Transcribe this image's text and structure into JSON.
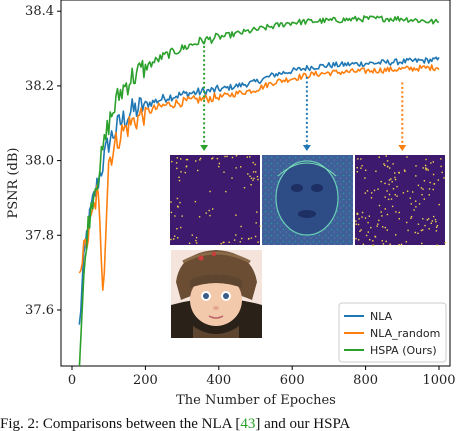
{
  "chart_data": {
    "type": "line",
    "title": "",
    "xlabel": "The Number of Epoches",
    "ylabel": "PSNR (dB)",
    "xlim": [
      -30,
      1030
    ],
    "ylim": [
      37.45,
      38.43
    ],
    "xticks": [
      0,
      200,
      400,
      600,
      800,
      1000
    ],
    "yticks": [
      37.6,
      37.8,
      38.0,
      38.2,
      38.4
    ],
    "ytick_labels": [
      "37.6",
      "37.8",
      "38.0",
      "38.2",
      "38.4"
    ],
    "grid": false,
    "legend_position": "lower-right",
    "series": [
      {
        "name": "NLA",
        "color": "#1f77b4",
        "anchors": [
          [
            20,
            37.55
          ],
          [
            30,
            37.7
          ],
          [
            40,
            37.8
          ],
          [
            55,
            37.88
          ],
          [
            75,
            37.96
          ],
          [
            100,
            38.05
          ],
          [
            130,
            38.1
          ],
          [
            160,
            38.13
          ],
          [
            200,
            38.15
          ],
          [
            260,
            38.17
          ],
          [
            320,
            38.18
          ],
          [
            400,
            38.19
          ],
          [
            450,
            38.2
          ],
          [
            500,
            38.21
          ],
          [
            550,
            38.23
          ],
          [
            600,
            38.24
          ],
          [
            650,
            38.25
          ],
          [
            700,
            38.255
          ],
          [
            800,
            38.26
          ],
          [
            900,
            38.265
          ],
          [
            1000,
            38.27
          ]
        ]
      },
      {
        "name": "NLA_random",
        "color": "#ff7f0e",
        "anchors": [
          [
            20,
            37.72
          ],
          [
            40,
            37.78
          ],
          [
            55,
            37.85
          ],
          [
            70,
            37.92
          ],
          [
            85,
            37.66
          ],
          [
            100,
            38.0
          ],
          [
            130,
            38.07
          ],
          [
            160,
            38.1
          ],
          [
            200,
            38.13
          ],
          [
            260,
            38.15
          ],
          [
            320,
            38.16
          ],
          [
            400,
            38.17
          ],
          [
            450,
            38.18
          ],
          [
            500,
            38.19
          ],
          [
            550,
            38.21
          ],
          [
            600,
            38.22
          ],
          [
            650,
            38.23
          ],
          [
            700,
            38.235
          ],
          [
            800,
            38.24
          ],
          [
            900,
            38.245
          ],
          [
            1000,
            38.25
          ]
        ]
      },
      {
        "name": "HSPA (Ours)",
        "color": "#2ca02c",
        "anchors": [
          [
            20,
            37.45
          ],
          [
            30,
            37.64
          ],
          [
            40,
            37.8
          ],
          [
            55,
            37.9
          ],
          [
            75,
            37.98
          ],
          [
            100,
            38.1
          ],
          [
            130,
            38.18
          ],
          [
            160,
            38.22
          ],
          [
            200,
            38.25
          ],
          [
            250,
            38.28
          ],
          [
            300,
            38.3
          ],
          [
            350,
            38.32
          ],
          [
            400,
            38.33
          ],
          [
            500,
            38.35
          ],
          [
            550,
            38.36
          ],
          [
            600,
            38.37
          ],
          [
            700,
            38.375
          ],
          [
            800,
            38.38
          ],
          [
            900,
            38.38
          ],
          [
            1000,
            38.37
          ]
        ]
      }
    ],
    "annotations": [
      {
        "x": 360,
        "y": 38.33,
        "color": "#2ca02c",
        "target": "sparse-map"
      },
      {
        "x": 640,
        "y": 38.235,
        "color": "#1f77b4",
        "target": "face-map"
      },
      {
        "x": 900,
        "y": 38.22,
        "color": "#ff7f0e",
        "target": "random-map"
      }
    ]
  },
  "caption": {
    "prefix": "Fig. 2: Comparisons between the NLA [",
    "ref": "43",
    "suffix": "] and our HSPA"
  }
}
